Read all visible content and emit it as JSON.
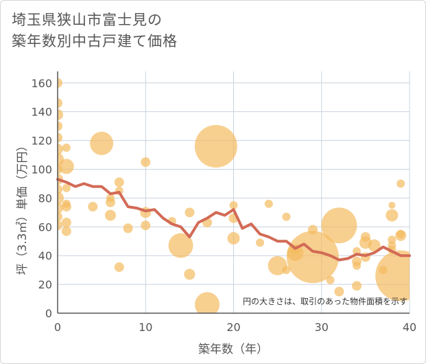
{
  "title_lines": [
    "埼玉県狭山市富士見の",
    "築年数別中古戸建て価格"
  ],
  "note": "円の大きさは、取引のあった物件面積を示す",
  "colors": {
    "bubble": "#f4bb60",
    "line": "#d26a56",
    "grid": "#c9d3de",
    "axis": "#555555",
    "text": "#555555"
  },
  "chart_data": {
    "type": "scatter",
    "xlabel": "築年数（年）",
    "ylabel": "坪（3.3㎡）単価（万円）",
    "xlim": [
      0,
      40
    ],
    "ylim": [
      0,
      168
    ],
    "xticks": [
      0,
      10,
      20,
      30,
      40
    ],
    "yticks": [
      0,
      20,
      40,
      60,
      80,
      100,
      120,
      140,
      160
    ],
    "grid": true,
    "bubbles": [
      {
        "x": 0,
        "y": 160,
        "s": 7
      },
      {
        "x": 0,
        "y": 146,
        "s": 7
      },
      {
        "x": 0,
        "y": 138,
        "s": 8
      },
      {
        "x": 0,
        "y": 130,
        "s": 7
      },
      {
        "x": 0,
        "y": 122,
        "s": 7
      },
      {
        "x": 0,
        "y": 114,
        "s": 8
      },
      {
        "x": 0,
        "y": 107,
        "s": 9
      },
      {
        "x": 0,
        "y": 100,
        "s": 7
      },
      {
        "x": 0,
        "y": 93,
        "s": 8
      },
      {
        "x": 0,
        "y": 86,
        "s": 7
      },
      {
        "x": 0,
        "y": 80,
        "s": 9
      },
      {
        "x": 0,
        "y": 73,
        "s": 8
      },
      {
        "x": 0,
        "y": 67,
        "s": 7
      },
      {
        "x": 0,
        "y": 61,
        "s": 7
      },
      {
        "x": 1,
        "y": 115,
        "s": 6
      },
      {
        "x": 1,
        "y": 102,
        "s": 11
      },
      {
        "x": 1,
        "y": 87,
        "s": 6
      },
      {
        "x": 1,
        "y": 76,
        "s": 6
      },
      {
        "x": 1,
        "y": 74,
        "s": 7
      },
      {
        "x": 1,
        "y": 63,
        "s": 7
      },
      {
        "x": 1,
        "y": 57,
        "s": 7
      },
      {
        "x": 4,
        "y": 74,
        "s": 7
      },
      {
        "x": 5,
        "y": 118,
        "s": 17
      },
      {
        "x": 6,
        "y": 80,
        "s": 6
      },
      {
        "x": 6,
        "y": 77,
        "s": 7
      },
      {
        "x": 6,
        "y": 68,
        "s": 8
      },
      {
        "x": 7,
        "y": 91,
        "s": 7
      },
      {
        "x": 7,
        "y": 85,
        "s": 6
      },
      {
        "x": 7,
        "y": 32,
        "s": 7
      },
      {
        "x": 8,
        "y": 59,
        "s": 7
      },
      {
        "x": 10,
        "y": 105,
        "s": 7
      },
      {
        "x": 10,
        "y": 70,
        "s": 8
      },
      {
        "x": 10,
        "y": 61,
        "s": 7
      },
      {
        "x": 13,
        "y": 64,
        "s": 6
      },
      {
        "x": 14,
        "y": 47,
        "s": 18
      },
      {
        "x": 15,
        "y": 70,
        "s": 7
      },
      {
        "x": 15,
        "y": 27,
        "s": 8
      },
      {
        "x": 17,
        "y": 63,
        "s": 7
      },
      {
        "x": 17,
        "y": 6,
        "s": 18
      },
      {
        "x": 18,
        "y": 116,
        "s": 31
      },
      {
        "x": 20,
        "y": 75,
        "s": 6
      },
      {
        "x": 20,
        "y": 66,
        "s": 7
      },
      {
        "x": 20,
        "y": 52,
        "s": 9
      },
      {
        "x": 23,
        "y": 49,
        "s": 6
      },
      {
        "x": 24,
        "y": 76,
        "s": 6
      },
      {
        "x": 25,
        "y": 33,
        "s": 14
      },
      {
        "x": 26,
        "y": 67,
        "s": 6
      },
      {
        "x": 26,
        "y": 30,
        "s": 6
      },
      {
        "x": 27,
        "y": 44,
        "s": 7
      },
      {
        "x": 27,
        "y": 42,
        "s": 12
      },
      {
        "x": 29,
        "y": 58,
        "s": 7
      },
      {
        "x": 29,
        "y": 39,
        "s": 38
      },
      {
        "x": 31,
        "y": 23,
        "s": 6
      },
      {
        "x": 32,
        "y": 61,
        "s": 26
      },
      {
        "x": 32,
        "y": 15,
        "s": 7
      },
      {
        "x": 34,
        "y": 43,
        "s": 6
      },
      {
        "x": 34,
        "y": 36,
        "s": 7
      },
      {
        "x": 34,
        "y": 33,
        "s": 6
      },
      {
        "x": 34,
        "y": 19,
        "s": 7
      },
      {
        "x": 35,
        "y": 53,
        "s": 7
      },
      {
        "x": 35,
        "y": 49,
        "s": 9
      },
      {
        "x": 35,
        "y": 39,
        "s": 7
      },
      {
        "x": 36,
        "y": 47,
        "s": 9
      },
      {
        "x": 37,
        "y": 30,
        "s": 6
      },
      {
        "x": 38,
        "y": 75,
        "s": 5
      },
      {
        "x": 38,
        "y": 68,
        "s": 9
      },
      {
        "x": 38,
        "y": 51,
        "s": 6
      },
      {
        "x": 38,
        "y": 47,
        "s": 6
      },
      {
        "x": 38,
        "y": 44,
        "s": 6
      },
      {
        "x": 39,
        "y": 90,
        "s": 6
      },
      {
        "x": 39,
        "y": 55,
        "s": 6
      },
      {
        "x": 39,
        "y": 54,
        "s": 8
      },
      {
        "x": 39,
        "y": 26,
        "s": 37
      }
    ],
    "series": [
      {
        "type": "line",
        "x": [
          0,
          1,
          2,
          3,
          4,
          5,
          6,
          7,
          8,
          9,
          10,
          11,
          12,
          13,
          14,
          15,
          16,
          17,
          18,
          19,
          20,
          21,
          22,
          23,
          24,
          25,
          26,
          27,
          28,
          29,
          30,
          31,
          32,
          33,
          34,
          35,
          36,
          37,
          38,
          39,
          40
        ],
        "y": [
          93,
          91,
          88,
          90,
          88,
          88,
          83,
          84,
          74,
          73,
          71,
          72,
          66,
          62,
          60,
          53,
          63,
          66,
          70,
          68,
          72,
          59,
          62,
          55,
          53,
          50,
          50,
          45,
          48,
          43,
          42,
          40,
          37,
          38,
          41,
          40,
          42,
          46,
          43,
          40,
          40
        ]
      }
    ]
  }
}
